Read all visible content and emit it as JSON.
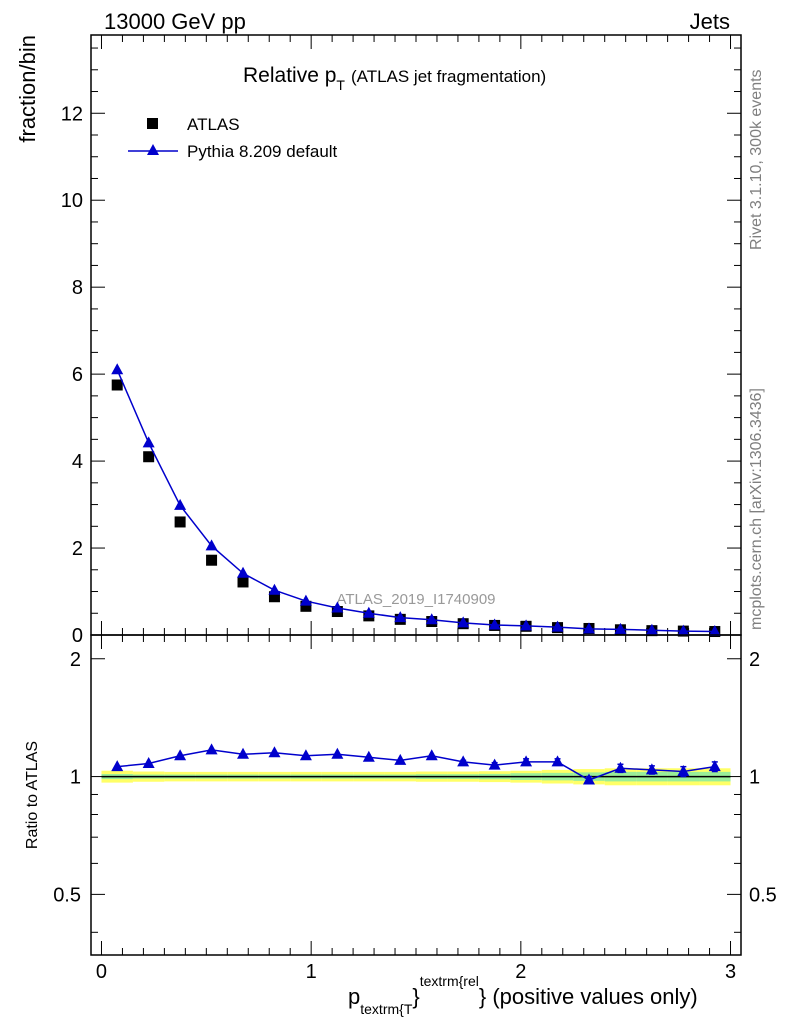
{
  "header": {
    "left": "13000 GeV pp",
    "right": "Jets"
  },
  "side_text": {
    "rivet": "Rivet 3.1.10,  300k events",
    "mcplots": "mcplots.cern.ch [arXiv:1306.3436]"
  },
  "chart_data": [
    {
      "type": "scatter",
      "panel": "main",
      "title_main": "Relative p",
      "title_sub": "T",
      "title_suffix": "(ATLAS jet fragmentation)",
      "ylabel": "fraction/bin",
      "watermark": "ATLAS_2019_I1740909",
      "xlim": [
        -0.05,
        3.05
      ],
      "ylim": [
        0,
        13.8
      ],
      "yticks": [
        0,
        2,
        4,
        6,
        8,
        10,
        12
      ],
      "ytick_labels": [
        "0",
        "2",
        "4",
        "6",
        "8",
        "10",
        "12"
      ],
      "legend": [
        "ATLAS",
        "Pythia 8.209 default"
      ],
      "legend_position": "top-left",
      "series": [
        {
          "name": "ATLAS",
          "marker": "square",
          "color": "#000000",
          "x": [
            0.075,
            0.225,
            0.375,
            0.525,
            0.675,
            0.825,
            0.975,
            1.125,
            1.275,
            1.425,
            1.575,
            1.725,
            1.875,
            2.025,
            2.175,
            2.325,
            2.475,
            2.625,
            2.775,
            2.925
          ],
          "y": [
            5.75,
            4.1,
            2.6,
            1.72,
            1.22,
            0.88,
            0.66,
            0.54,
            0.44,
            0.36,
            0.31,
            0.26,
            0.22,
            0.2,
            0.17,
            0.15,
            0.12,
            0.1,
            0.09,
            0.08
          ]
        },
        {
          "name": "Pythia 8.209 default",
          "marker": "triangle",
          "color": "#0000cc",
          "x": [
            0.075,
            0.225,
            0.375,
            0.525,
            0.675,
            0.825,
            0.975,
            1.125,
            1.275,
            1.425,
            1.575,
            1.725,
            1.875,
            2.025,
            2.175,
            2.325,
            2.475,
            2.625,
            2.775,
            2.925
          ],
          "y": [
            6.1,
            4.42,
            2.98,
            2.05,
            1.42,
            1.03,
            0.78,
            0.62,
            0.5,
            0.4,
            0.35,
            0.28,
            0.23,
            0.21,
            0.18,
            0.14,
            0.13,
            0.11,
            0.09,
            0.08
          ]
        }
      ]
    },
    {
      "type": "line",
      "panel": "ratio",
      "ylabel": "Ratio to ATLAS",
      "xlabel_main": "p",
      "xlabel_sub": "textrm{T",
      "xlabel_brace": "}",
      "xlabel_sup": "textrm{rel",
      "xlabel_tail": "} (positive values only)",
      "xlim": [
        -0.05,
        3.05
      ],
      "ylim": [
        0.35,
        2.3
      ],
      "xticks": [
        0,
        1,
        2,
        3
      ],
      "xtick_labels": [
        "0",
        "1",
        "2",
        "3"
      ],
      "yticks": [
        0.5,
        1,
        2
      ],
      "ytick_labels": [
        "0.5",
        "1",
        "2"
      ],
      "band_colors": {
        "outer": "#ffff66",
        "inner": "#99ee99"
      },
      "series": [
        {
          "name": "Pythia 8.209 default",
          "color": "#0000cc",
          "x": [
            0.075,
            0.225,
            0.375,
            0.525,
            0.675,
            0.825,
            0.975,
            1.125,
            1.275,
            1.425,
            1.575,
            1.725,
            1.875,
            2.025,
            2.175,
            2.325,
            2.475,
            2.625,
            2.775,
            2.925
          ],
          "y": [
            1.06,
            1.08,
            1.13,
            1.17,
            1.14,
            1.15,
            1.13,
            1.14,
            1.12,
            1.1,
            1.13,
            1.09,
            1.07,
            1.09,
            1.09,
            0.98,
            1.05,
            1.04,
            1.03,
            1.06
          ],
          "err": [
            0.0,
            0.0,
            0.0,
            0.0,
            0.0,
            0.0,
            0.0,
            0.0,
            0.0,
            0.0,
            0.0,
            0.01,
            0.015,
            0.02,
            0.02,
            0.02,
            0.025,
            0.025,
            0.03,
            0.03
          ]
        }
      ],
      "band": {
        "x": [
          -0.0,
          0.15,
          0.3,
          0.45,
          0.6,
          0.75,
          0.9,
          1.05,
          1.2,
          1.35,
          1.5,
          1.65,
          1.8,
          1.95,
          2.1,
          2.25,
          2.4,
          2.55,
          2.7,
          2.85,
          3.0
        ],
        "outer": [
          0.035,
          0.03,
          0.028,
          0.028,
          0.028,
          0.028,
          0.028,
          0.028,
          0.028,
          0.028,
          0.03,
          0.03,
          0.032,
          0.035,
          0.04,
          0.045,
          0.05,
          0.05,
          0.05,
          0.05
        ],
        "inner": [
          0.015,
          0.012,
          0.012,
          0.012,
          0.012,
          0.012,
          0.012,
          0.012,
          0.012,
          0.012,
          0.014,
          0.014,
          0.016,
          0.02,
          0.022,
          0.025,
          0.028,
          0.028,
          0.028,
          0.028
        ]
      }
    }
  ]
}
